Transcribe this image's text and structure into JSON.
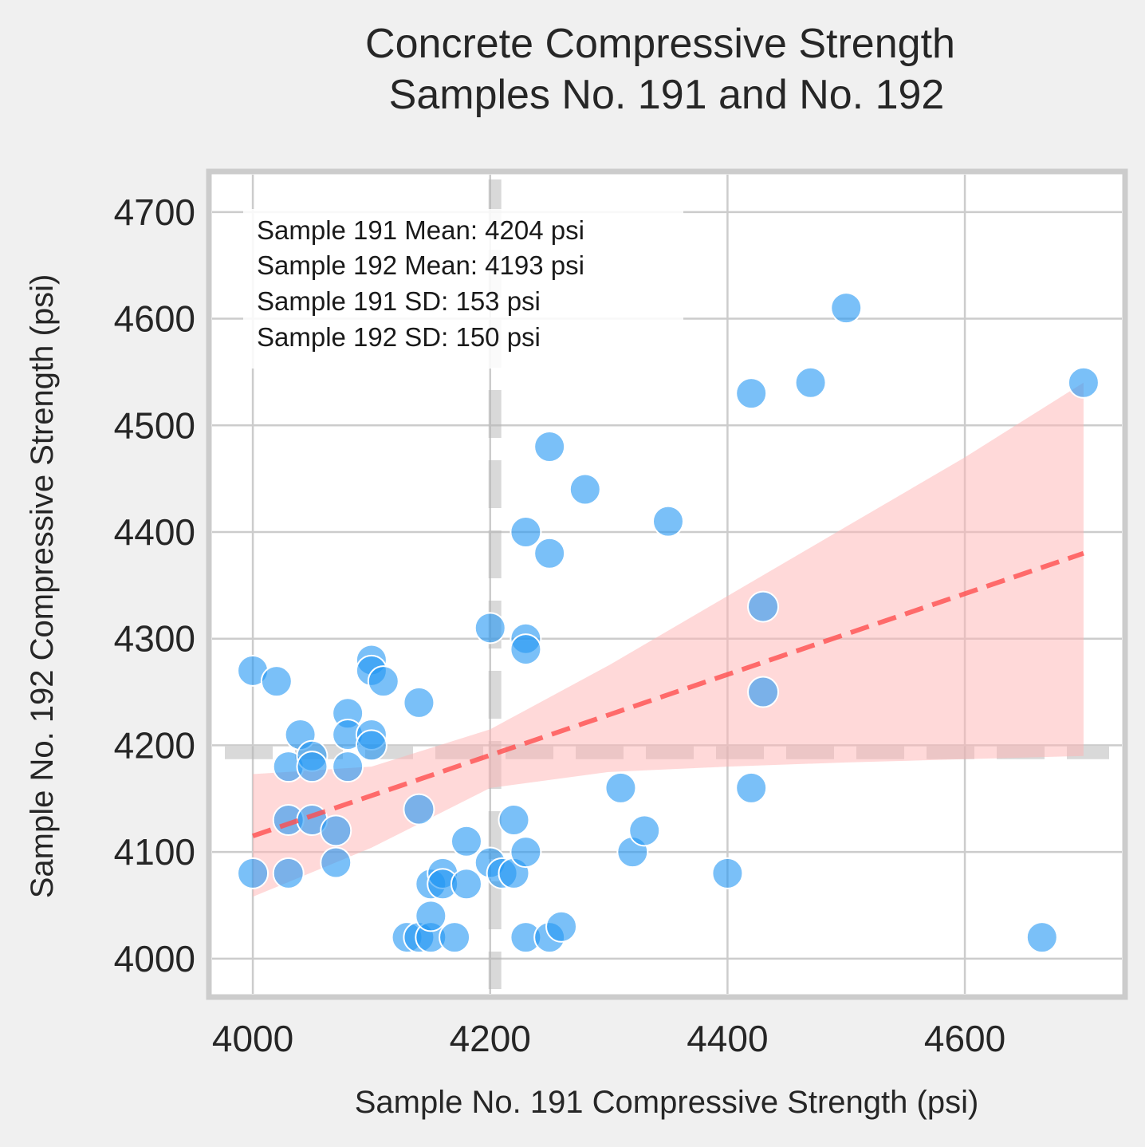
{
  "chart_data": {
    "type": "scatter",
    "title": "Concrete Compressive Strength",
    "subtitle": "Samples No. 191 and No. 192",
    "xlabel": "Sample No. 191 Compressive Strength (psi)",
    "ylabel": "Sample No. 192 Compressive Strength (psi)",
    "xlim": [
      3963,
      4735
    ],
    "ylim": [
      3964,
      4738
    ],
    "x_ticks": [
      4000,
      4200,
      4400,
      4600
    ],
    "y_ticks": [
      4000,
      4100,
      4200,
      4300,
      4400,
      4500,
      4600,
      4700
    ],
    "x_tick_labels": [
      "4000",
      "4200",
      "4400",
      "4600"
    ],
    "y_tick_labels": [
      "4000",
      "4100",
      "4200",
      "4300",
      "4400",
      "4500",
      "4600",
      "4700"
    ],
    "grid": true,
    "point_color": "#2196F3",
    "fit_color": "#ff4d4d",
    "ci_color": "#ffb3b3",
    "points": [
      [
        4000,
        4270
      ],
      [
        4020,
        4260
      ],
      [
        4000,
        4080
      ],
      [
        4030,
        4180
      ],
      [
        4030,
        4130
      ],
      [
        4030,
        4080
      ],
      [
        4040,
        4210
      ],
      [
        4050,
        4190
      ],
      [
        4050,
        4180
      ],
      [
        4050,
        4130
      ],
      [
        4070,
        4120
      ],
      [
        4070,
        4090
      ],
      [
        4080,
        4230
      ],
      [
        4080,
        4210
      ],
      [
        4080,
        4180
      ],
      [
        4100,
        4280
      ],
      [
        4100,
        4270
      ],
      [
        4110,
        4260
      ],
      [
        4100,
        4210
      ],
      [
        4100,
        4200
      ],
      [
        4140,
        4240
      ],
      [
        4140,
        4140
      ],
      [
        4130,
        4020
      ],
      [
        4140,
        4020
      ],
      [
        4150,
        4020
      ],
      [
        4150,
        4040
      ],
      [
        4150,
        4070
      ],
      [
        4160,
        4080
      ],
      [
        4160,
        4070
      ],
      [
        4170,
        4020
      ],
      [
        4180,
        4110
      ],
      [
        4180,
        4070
      ],
      [
        4200,
        4310
      ],
      [
        4200,
        4090
      ],
      [
        4210,
        4080
      ],
      [
        4220,
        4130
      ],
      [
        4220,
        4080
      ],
      [
        4230,
        4400
      ],
      [
        4230,
        4300
      ],
      [
        4230,
        4290
      ],
      [
        4230,
        4100
      ],
      [
        4230,
        4020
      ],
      [
        4250,
        4480
      ],
      [
        4250,
        4380
      ],
      [
        4250,
        4020
      ],
      [
        4260,
        4030
      ],
      [
        4280,
        4440
      ],
      [
        4310,
        4160
      ],
      [
        4320,
        4100
      ],
      [
        4330,
        4120
      ],
      [
        4350,
        4410
      ],
      [
        4400,
        4080
      ],
      [
        4420,
        4530
      ],
      [
        4420,
        4160
      ],
      [
        4430,
        4330
      ],
      [
        4430,
        4250
      ],
      [
        4470,
        4540
      ],
      [
        4500,
        4610
      ],
      [
        4665,
        4020
      ],
      [
        4700,
        4540
      ]
    ],
    "regression": {
      "x_start": 4000,
      "y_start": 4115,
      "x_end": 4700,
      "y_end": 4380
    },
    "confidence_band": {
      "x": [
        4000,
        4100,
        4200,
        4300,
        4400,
        4500,
        4600,
        4700
      ],
      "upper": [
        4173,
        4180,
        4215,
        4275,
        4340,
        4405,
        4470,
        4540
      ],
      "lower": [
        4058,
        4104,
        4160,
        4175,
        4180,
        4184,
        4187,
        4190
      ]
    },
    "mean_x": 4204,
    "mean_y": 4193,
    "stats": [
      "Sample 191 Mean: 4204 psi",
      "Sample 192 Mean: 4193 psi",
      "Sample 191 SD: 153 psi",
      "Sample 192 SD: 150 psi"
    ]
  }
}
